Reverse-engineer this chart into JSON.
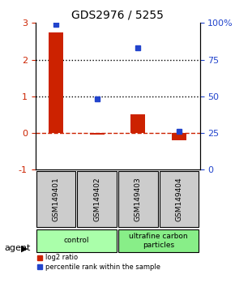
{
  "title": "GDS2976 / 5255",
  "samples": [
    "GSM149401",
    "GSM149402",
    "GSM149403",
    "GSM149404"
  ],
  "log2_ratio": [
    2.75,
    -0.05,
    0.5,
    -0.2
  ],
  "percentile_rank": [
    99,
    48,
    83,
    26
  ],
  "groups": [
    {
      "label": "control",
      "samples": [
        0,
        1
      ],
      "color": "#aaffaa"
    },
    {
      "label": "ultrafine carbon\nparticles",
      "samples": [
        2,
        3
      ],
      "color": "#88ee88"
    }
  ],
  "bar_color_red": "#cc2200",
  "bar_color_blue": "#2244cc",
  "ylim_left": [
    -1,
    3
  ],
  "ylim_right": [
    0,
    100
  ],
  "yticks_left": [
    -1,
    0,
    1,
    2,
    3
  ],
  "yticks_right": [
    0,
    25,
    50,
    75,
    100
  ],
  "ytick_labels_right": [
    "0",
    "25",
    "50",
    "75",
    "100%"
  ],
  "hlines": [
    0,
    1,
    2
  ],
  "hline_styles": [
    "dashed-red",
    "dotted-black",
    "dotted-black"
  ],
  "agent_label": "agent",
  "legend_log2": "log2 ratio",
  "legend_pct": "percentile rank within the sample",
  "background_color": "#ffffff",
  "sample_box_color": "#cccccc",
  "bar_width": 0.35
}
